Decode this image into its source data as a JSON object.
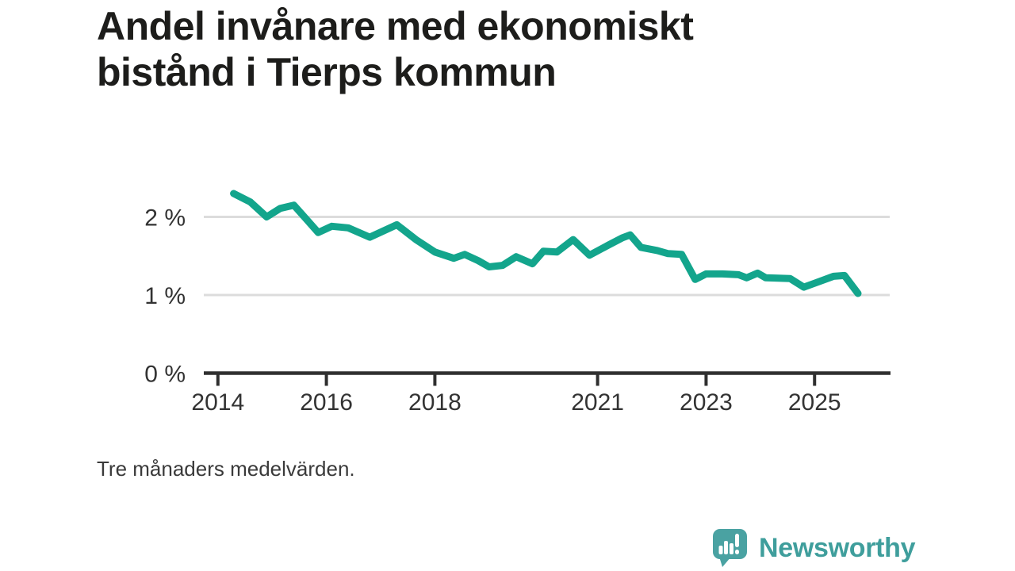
{
  "title_lines": [
    "Andel invånare med ekonomiskt",
    "bistånd i Tierps kommun"
  ],
  "note": "Tre månaders medelvärden.",
  "brand": {
    "name": "Newsworthy",
    "icon": "bar-chart-speech-bubble",
    "icon_color": "#4aa2a2",
    "text_color": "#3f9e9c"
  },
  "chart_data": {
    "type": "line",
    "title": "Andel invånare med ekonomiskt bistånd i Tierps kommun",
    "note": "Tre månaders medelvärden.",
    "unit": "%",
    "xlabel": "",
    "ylabel": "",
    "grid": "horizontal",
    "legend_position": "none",
    "xlim": [
      2013.74,
      2026.4
    ],
    "ylim": [
      0,
      2.45
    ],
    "x_ticks": [
      {
        "label": "2014",
        "year": 2014
      },
      {
        "label": "2016",
        "year": 2016
      },
      {
        "label": "2018",
        "year": 2018
      },
      {
        "label": "2021",
        "year": 2021
      },
      {
        "label": "2023",
        "year": 2023
      },
      {
        "label": "2025",
        "year": 2025
      }
    ],
    "y_ticks": [
      {
        "label": "0 %",
        "value": 0
      },
      {
        "label": "1 %",
        "value": 1
      },
      {
        "label": "2 %",
        "value": 2
      }
    ],
    "axis_color": "#2f2f2f",
    "grid_color": "#dcdcdc",
    "tick_label_color": "#333333",
    "series": [
      {
        "name": "Andel invånare med ekonomiskt bistånd",
        "color": "#13a58c",
        "points": [
          [
            2014.29,
            2.3
          ],
          [
            2014.6,
            2.19
          ],
          [
            2014.9,
            2.0
          ],
          [
            2015.15,
            2.11
          ],
          [
            2015.4,
            2.15
          ],
          [
            2015.85,
            1.8
          ],
          [
            2016.1,
            1.88
          ],
          [
            2016.4,
            1.86
          ],
          [
            2016.8,
            1.74
          ],
          [
            2017.3,
            1.9
          ],
          [
            2017.65,
            1.71
          ],
          [
            2018.0,
            1.55
          ],
          [
            2018.35,
            1.47
          ],
          [
            2018.55,
            1.52
          ],
          [
            2018.8,
            1.44
          ],
          [
            2019.0,
            1.36
          ],
          [
            2019.25,
            1.38
          ],
          [
            2019.5,
            1.49
          ],
          [
            2019.8,
            1.4
          ],
          [
            2020.0,
            1.56
          ],
          [
            2020.25,
            1.55
          ],
          [
            2020.55,
            1.71
          ],
          [
            2020.85,
            1.51
          ],
          [
            2021.2,
            1.64
          ],
          [
            2021.45,
            1.73
          ],
          [
            2021.6,
            1.77
          ],
          [
            2021.8,
            1.61
          ],
          [
            2022.1,
            1.57
          ],
          [
            2022.3,
            1.53
          ],
          [
            2022.55,
            1.52
          ],
          [
            2022.8,
            1.2
          ],
          [
            2023.0,
            1.27
          ],
          [
            2023.3,
            1.27
          ],
          [
            2023.6,
            1.26
          ],
          [
            2023.75,
            1.22
          ],
          [
            2023.95,
            1.28
          ],
          [
            2024.1,
            1.22
          ],
          [
            2024.55,
            1.21
          ],
          [
            2024.8,
            1.1
          ],
          [
            2025.0,
            1.15
          ],
          [
            2025.35,
            1.24
          ],
          [
            2025.55,
            1.25
          ],
          [
            2025.8,
            1.02
          ]
        ]
      }
    ]
  }
}
